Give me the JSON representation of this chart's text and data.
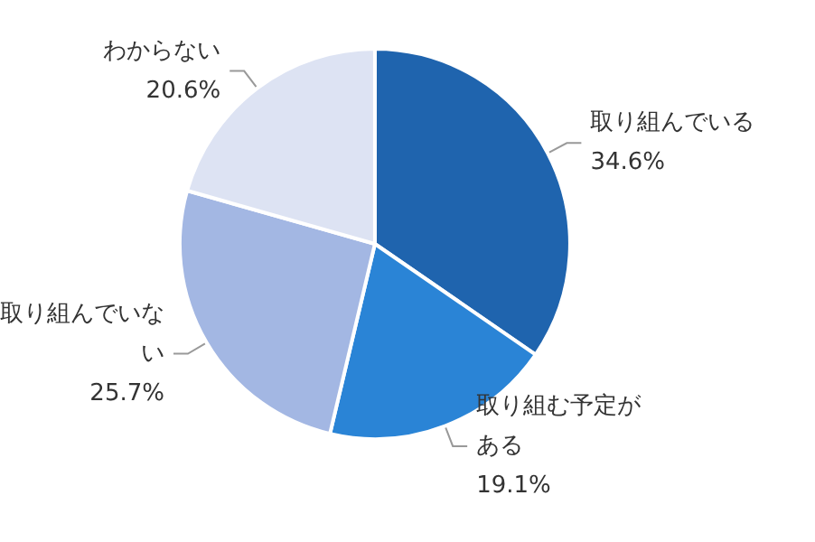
{
  "chart_data": {
    "type": "pie",
    "categories": [
      "取り組んでいる",
      "取り組む予定がある",
      "取り組んでいない",
      "わからない"
    ],
    "values": [
      34.6,
      19.1,
      25.7,
      20.6
    ],
    "value_labels": [
      "34.6%",
      "19.1%",
      "25.7%",
      "20.6%"
    ],
    "colors": [
      "#1f64ae",
      "#2a84d6",
      "#a3b7e3",
      "#dde3f3"
    ],
    "legend": false
  }
}
